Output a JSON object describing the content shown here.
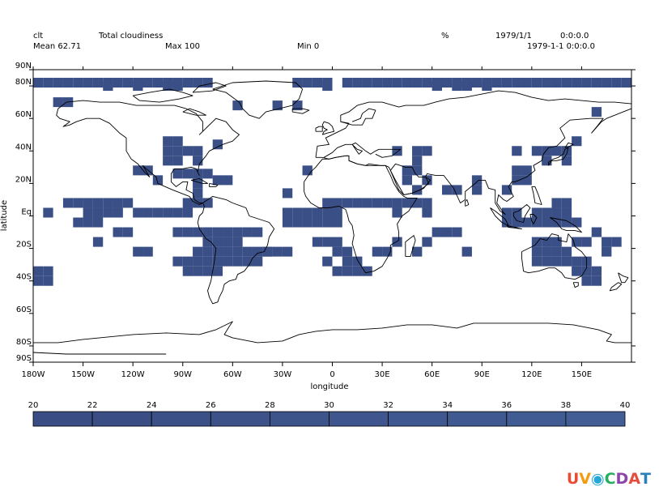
{
  "header": {
    "variable": "clt",
    "long_name": "Total cloudiness",
    "units": "%",
    "date": "1979/1/1",
    "time": "0:0:0.0",
    "mean": "Mean 62.71",
    "max": "Max 100",
    "min": "Min 0",
    "datetime": "1979-1-1 0:0:0.0"
  },
  "map": {
    "projection": "cylindrical equidistant",
    "lon_range": [
      -180,
      180
    ],
    "lat_range": [
      -90,
      90
    ],
    "xlabel": "longitude",
    "ylabel": "latitude",
    "xticks": [
      "180W",
      "150W",
      "120W",
      "90W",
      "60W",
      "30W",
      "0",
      "30E",
      "60E",
      "90E",
      "120E",
      "150E"
    ],
    "yticks": [
      "90N",
      "80N",
      "60N",
      "40N",
      "20N",
      "Eq",
      "20S",
      "40S",
      "60S",
      "80S",
      "90S"
    ],
    "cell_color": "#3a4f86",
    "coast_color": "#000000"
  },
  "chart_data": {
    "type": "heatmap",
    "title": "Total cloudiness",
    "units": "%",
    "grid_resolution_deg": 6,
    "colorbar": {
      "min": 20,
      "max": 40,
      "tick_labels": [
        "20",
        "22",
        "24",
        "26",
        "28",
        "30",
        "32",
        "34",
        "36",
        "38",
        "40"
      ],
      "colors": [
        "#394c83",
        "#3a4e85",
        "#3b5087",
        "#3c5289",
        "#3d548b",
        "#3e568d",
        "#3f588f",
        "#405a91",
        "#415c93",
        "#425e95"
      ]
    },
    "cells": [
      [
        -180,
        82
      ],
      [
        -174,
        82
      ],
      [
        -168,
        82
      ],
      [
        -162,
        82
      ],
      [
        -156,
        82
      ],
      [
        -150,
        82
      ],
      [
        -144,
        82
      ],
      [
        -138,
        82
      ],
      [
        -132,
        82
      ],
      [
        -126,
        82
      ],
      [
        -120,
        82
      ],
      [
        -114,
        82
      ],
      [
        -108,
        82
      ],
      [
        -102,
        82
      ],
      [
        -96,
        82
      ],
      [
        -90,
        82
      ],
      [
        -84,
        82
      ],
      [
        -78,
        82
      ],
      [
        -24,
        82
      ],
      [
        -18,
        82
      ],
      [
        -12,
        82
      ],
      [
        -6,
        82
      ],
      [
        6,
        82
      ],
      [
        12,
        82
      ],
      [
        18,
        82
      ],
      [
        24,
        82
      ],
      [
        30,
        82
      ],
      [
        36,
        82
      ],
      [
        42,
        82
      ],
      [
        48,
        82
      ],
      [
        54,
        82
      ],
      [
        60,
        82
      ],
      [
        66,
        82
      ],
      [
        72,
        82
      ],
      [
        78,
        82
      ],
      [
        84,
        82
      ],
      [
        90,
        82
      ],
      [
        96,
        82
      ],
      [
        102,
        82
      ],
      [
        108,
        82
      ],
      [
        114,
        82
      ],
      [
        120,
        82
      ],
      [
        126,
        82
      ],
      [
        132,
        82
      ],
      [
        138,
        82
      ],
      [
        144,
        82
      ],
      [
        150,
        82
      ],
      [
        156,
        82
      ],
      [
        162,
        82
      ],
      [
        168,
        82
      ],
      [
        174,
        82
      ],
      [
        -138,
        80
      ],
      [
        -120,
        80
      ],
      [
        -102,
        80
      ],
      [
        -96,
        80
      ],
      [
        -6,
        80
      ],
      [
        60,
        80
      ],
      [
        72,
        80
      ],
      [
        78,
        80
      ],
      [
        90,
        80
      ],
      [
        -168,
        70
      ],
      [
        -162,
        70
      ],
      [
        -60,
        68
      ],
      [
        -36,
        68
      ],
      [
        -24,
        68
      ],
      [
        -102,
        46
      ],
      [
        -96,
        46
      ],
      [
        -102,
        40
      ],
      [
        -96,
        40
      ],
      [
        -90,
        40
      ],
      [
        -102,
        34
      ],
      [
        -96,
        34
      ],
      [
        -72,
        44
      ],
      [
        -84,
        40
      ],
      [
        -84,
        34
      ],
      [
        -120,
        28
      ],
      [
        -96,
        26
      ],
      [
        -90,
        26
      ],
      [
        -84,
        26
      ],
      [
        -78,
        26
      ],
      [
        -72,
        22
      ],
      [
        -66,
        22
      ],
      [
        -84,
        20
      ],
      [
        -84,
        14
      ],
      [
        -84,
        8
      ],
      [
        -78,
        8
      ],
      [
        -90,
        8
      ],
      [
        -114,
        28
      ],
      [
        -108,
        22
      ],
      [
        -18,
        28
      ],
      [
        -30,
        14
      ],
      [
        36,
        40
      ],
      [
        48,
        40
      ],
      [
        54,
        40
      ],
      [
        48,
        34
      ],
      [
        42,
        28
      ],
      [
        48,
        28
      ],
      [
        42,
        22
      ],
      [
        54,
        22
      ],
      [
        48,
        16
      ],
      [
        66,
        16
      ],
      [
        72,
        16
      ],
      [
        84,
        22
      ],
      [
        84,
        16
      ],
      [
        108,
        40
      ],
      [
        108,
        28
      ],
      [
        108,
        22
      ],
      [
        102,
        16
      ],
      [
        114,
        28
      ],
      [
        114,
        22
      ],
      [
        120,
        40
      ],
      [
        126,
        40
      ],
      [
        126,
        34
      ],
      [
        132,
        40
      ],
      [
        138,
        40
      ],
      [
        138,
        34
      ],
      [
        144,
        46
      ],
      [
        156,
        64
      ],
      [
        -156,
        8
      ],
      [
        -150,
        8
      ],
      [
        -144,
        8
      ],
      [
        -138,
        8
      ],
      [
        -132,
        8
      ],
      [
        -126,
        8
      ],
      [
        -120,
        2
      ],
      [
        -114,
        2
      ],
      [
        -108,
        2
      ],
      [
        -102,
        2
      ],
      [
        -96,
        2
      ],
      [
        -90,
        2
      ],
      [
        -150,
        2
      ],
      [
        -144,
        2
      ],
      [
        -138,
        2
      ],
      [
        -132,
        2
      ],
      [
        -156,
        -4
      ],
      [
        -150,
        -4
      ],
      [
        -144,
        -4
      ],
      [
        -174,
        2
      ],
      [
        -162,
        8
      ],
      [
        -30,
        2
      ],
      [
        -24,
        2
      ],
      [
        -18,
        2
      ],
      [
        -12,
        2
      ],
      [
        -6,
        2
      ],
      [
        -30,
        -4
      ],
      [
        -24,
        -4
      ],
      [
        -18,
        -4
      ],
      [
        -12,
        -4
      ],
      [
        -6,
        -4
      ],
      [
        0,
        -4
      ],
      [
        0,
        2
      ],
      [
        0,
        8
      ],
      [
        -6,
        8
      ],
      [
        6,
        8
      ],
      [
        12,
        8
      ],
      [
        18,
        8
      ],
      [
        24,
        8
      ],
      [
        30,
        8
      ],
      [
        36,
        8
      ],
      [
        42,
        8
      ],
      [
        48,
        8
      ],
      [
        54,
        8
      ],
      [
        36,
        2
      ],
      [
        54,
        2
      ],
      [
        102,
        2
      ],
      [
        108,
        2
      ],
      [
        102,
        -4
      ],
      [
        108,
        -4
      ],
      [
        114,
        -4
      ],
      [
        120,
        -4
      ],
      [
        126,
        -4
      ],
      [
        132,
        -4
      ],
      [
        138,
        -4
      ],
      [
        120,
        2
      ],
      [
        126,
        2
      ],
      [
        132,
        2
      ],
      [
        132,
        8
      ],
      [
        138,
        8
      ],
      [
        138,
        2
      ],
      [
        144,
        -4
      ],
      [
        -132,
        -10
      ],
      [
        -126,
        -10
      ],
      [
        -96,
        -10
      ],
      [
        -90,
        -10
      ],
      [
        -84,
        -10
      ],
      [
        -78,
        -10
      ],
      [
        -72,
        -10
      ],
      [
        -66,
        -10
      ],
      [
        -60,
        -10
      ],
      [
        -54,
        -10
      ],
      [
        -48,
        -10
      ],
      [
        -78,
        -16
      ],
      [
        -72,
        -16
      ],
      [
        -66,
        -16
      ],
      [
        -60,
        -16
      ],
      [
        -84,
        -22
      ],
      [
        -78,
        -22
      ],
      [
        -72,
        -22
      ],
      [
        -66,
        -22
      ],
      [
        -60,
        -22
      ],
      [
        -54,
        -22
      ],
      [
        -48,
        -22
      ],
      [
        -42,
        -22
      ],
      [
        -36,
        -22
      ],
      [
        -30,
        -22
      ],
      [
        -144,
        -16
      ],
      [
        -120,
        -22
      ],
      [
        -114,
        -22
      ],
      [
        -96,
        -28
      ],
      [
        -90,
        -28
      ],
      [
        -84,
        -28
      ],
      [
        -78,
        -28
      ],
      [
        -72,
        -28
      ],
      [
        -66,
        -28
      ],
      [
        -60,
        -28
      ],
      [
        -54,
        -28
      ],
      [
        -48,
        -28
      ],
      [
        -84,
        -34
      ],
      [
        -78,
        -34
      ],
      [
        -72,
        -34
      ],
      [
        -90,
        -34
      ],
      [
        -42,
        -22
      ],
      [
        -12,
        -16
      ],
      [
        -6,
        -16
      ],
      [
        0,
        -16
      ],
      [
        0,
        -22
      ],
      [
        6,
        -22
      ],
      [
        6,
        -28
      ],
      [
        12,
        -28
      ],
      [
        12,
        -34
      ],
      [
        6,
        -34
      ],
      [
        0,
        -34
      ],
      [
        -6,
        -28
      ],
      [
        18,
        -34
      ],
      [
        24,
        -22
      ],
      [
        30,
        -22
      ],
      [
        36,
        -16
      ],
      [
        48,
        -22
      ],
      [
        54,
        -16
      ],
      [
        60,
        -10
      ],
      [
        66,
        -10
      ],
      [
        72,
        -10
      ],
      [
        78,
        -22
      ],
      [
        120,
        -16
      ],
      [
        126,
        -16
      ],
      [
        132,
        -16
      ],
      [
        120,
        -22
      ],
      [
        126,
        -22
      ],
      [
        132,
        -22
      ],
      [
        138,
        -22
      ],
      [
        144,
        -16
      ],
      [
        150,
        -16
      ],
      [
        156,
        -10
      ],
      [
        162,
        -16
      ],
      [
        120,
        -28
      ],
      [
        126,
        -28
      ],
      [
        132,
        -28
      ],
      [
        138,
        -28
      ],
      [
        144,
        -28
      ],
      [
        150,
        -28
      ],
      [
        156,
        -34
      ],
      [
        150,
        -34
      ],
      [
        144,
        -34
      ],
      [
        150,
        -40
      ],
      [
        156,
        -40
      ],
      [
        162,
        -22
      ],
      [
        168,
        -16
      ],
      [
        -180,
        -34
      ],
      [
        -180,
        -40
      ],
      [
        -174,
        -34
      ],
      [
        -174,
        -40
      ]
    ]
  }
}
